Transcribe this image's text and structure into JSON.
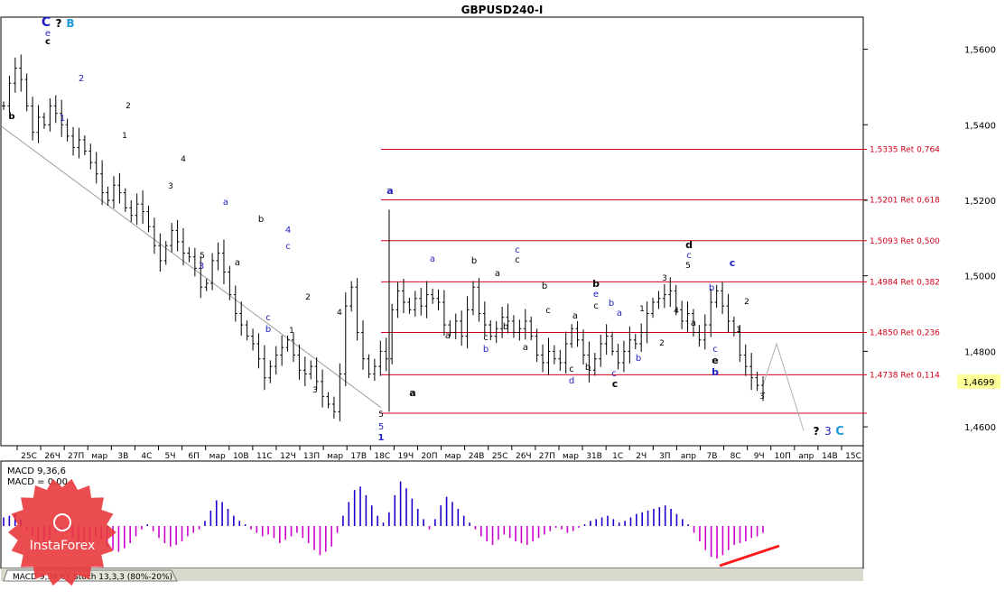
{
  "chart_title": "GBPUSD240-I",
  "macd_label": "MACD 9,36,6",
  "macd_value_label": "MACD = 0,00",
  "tabs": [
    "MACD 9,36,6",
    "Stoch 13,3,3 (80%-20%)"
  ],
  "logo_text": "InstaForex",
  "colors": {
    "fib": "#d0021b",
    "macd_pos": "#1a00cc",
    "macd_neg": "#cc00cc",
    "last_price_bg": "#ffff99",
    "wave_blue": "#1f1fbf",
    "wave_cyan": "#1a9ad6",
    "divergence": "#ff1a1a"
  },
  "chart_data": {
    "type": "ohlc",
    "symbol": "GBPUSD",
    "timeframe": "H4",
    "ylim": [
      1.455,
      1.5685
    ],
    "y_ticks": [
      "1,5600",
      "1,5400",
      "1,5200",
      "1,5000",
      "1,4800",
      "1,4600"
    ],
    "last_price": "1,4699",
    "x_labels": [
      "25C",
      "26Ч",
      "27П",
      "мар",
      "3B",
      "4C",
      "5Ч",
      "6П",
      "мар",
      "10B",
      "11C",
      "12Ч",
      "13П",
      "мар",
      "17B",
      "18C",
      "19Ч",
      "20П",
      "мар",
      "24B",
      "25C",
      "26Ч",
      "27П",
      "мар",
      "31B",
      "1C",
      "2Ч",
      "3П",
      "апр",
      "7B",
      "8C",
      "9Ч",
      "10П",
      "апр",
      "14B",
      "15C"
    ],
    "fib_levels": [
      {
        "price": 1.5335,
        "label": "1,5335 Ret 0,764"
      },
      {
        "price": 1.5201,
        "label": "1,5201 Ret 0,618"
      },
      {
        "price": 1.5093,
        "label": "1,5093 Ret 0,500"
      },
      {
        "price": 1.4984,
        "label": "1,4984 Ret 0,382"
      },
      {
        "price": 1.485,
        "label": "1,4850 Ret 0,236"
      },
      {
        "price": 1.4738,
        "label": "1,4738 Ret 0,114"
      },
      {
        "price": 1.4636,
        "label": ""
      }
    ],
    "path_closes": [
      1.545,
      1.551,
      1.555,
      1.552,
      1.545,
      1.538,
      1.542,
      1.54,
      1.545,
      1.543,
      1.54,
      1.537,
      1.534,
      1.536,
      1.533,
      1.53,
      1.527,
      1.522,
      1.52,
      1.524,
      1.522,
      1.518,
      1.516,
      1.519,
      1.517,
      1.513,
      1.508,
      1.504,
      1.508,
      1.512,
      1.509,
      1.506,
      1.505,
      1.502,
      1.497,
      1.498,
      1.504,
      1.506,
      1.501,
      1.495,
      1.49,
      1.487,
      1.484,
      1.482,
      1.478,
      1.473,
      1.476,
      1.479,
      1.481,
      1.483,
      1.479,
      1.475,
      1.474,
      1.476,
      1.472,
      1.468,
      1.466,
      1.464,
      1.474,
      1.492,
      1.497,
      1.485,
      1.478,
      1.474,
      1.476,
      1.48,
      1.478,
      1.491,
      1.496,
      1.493,
      1.491,
      1.494,
      1.492,
      1.495,
      1.494,
      1.493,
      1.487,
      1.485,
      1.488,
      1.484,
      1.491,
      1.497,
      1.49,
      1.487,
      1.484,
      1.486,
      1.489,
      1.488,
      1.485,
      1.486,
      1.488,
      1.484,
      1.479,
      1.477,
      1.48,
      1.478,
      1.477,
      1.482,
      1.486,
      1.483,
      1.479,
      1.475,
      1.478,
      1.482,
      1.484,
      1.48,
      1.477,
      1.48,
      1.483,
      1.482,
      1.485,
      1.49,
      1.493,
      1.494,
      1.495,
      1.496,
      1.491,
      1.488,
      1.49,
      1.485,
      1.483,
      1.487,
      1.493,
      1.496,
      1.492,
      1.488,
      1.485,
      1.479,
      1.476,
      1.473,
      1.471,
      1.469
    ],
    "macd": [
      0.25,
      0.3,
      0.35,
      0.2,
      -0.1,
      -0.3,
      -0.5,
      -0.6,
      -0.4,
      -0.2,
      -0.1,
      -0.2,
      -0.35,
      -0.5,
      -0.55,
      -0.45,
      -0.3,
      -0.4,
      -0.6,
      -0.7,
      -0.75,
      -0.65,
      -0.5,
      -0.3,
      -0.1,
      0.05,
      -0.15,
      -0.35,
      -0.5,
      -0.6,
      -0.55,
      -0.45,
      -0.3,
      -0.2,
      -0.1,
      0.15,
      0.45,
      0.75,
      0.7,
      0.5,
      0.3,
      0.15,
      0.05,
      -0.1,
      -0.2,
      -0.3,
      -0.25,
      -0.35,
      -0.5,
      -0.4,
      -0.3,
      -0.2,
      -0.35,
      -0.5,
      -0.7,
      -0.85,
      -0.75,
      -0.6,
      -0.2,
      0.3,
      0.7,
      1.05,
      1.15,
      0.9,
      0.6,
      0.3,
      0.1,
      0.4,
      0.9,
      1.3,
      1.1,
      0.8,
      0.5,
      0.2,
      -0.1,
      0.2,
      0.6,
      0.85,
      0.7,
      0.5,
      0.3,
      0.1,
      -0.1,
      -0.3,
      -0.45,
      -0.55,
      -0.4,
      -0.25,
      -0.35,
      -0.45,
      -0.5,
      -0.55,
      -0.45,
      -0.35,
      -0.25,
      -0.15,
      -0.05,
      -0.1,
      -0.2,
      -0.15,
      -0.05,
      0.05,
      0.15,
      0.2,
      0.25,
      0.3,
      0.2,
      0.1,
      0.15,
      0.25,
      0.35,
      0.4,
      0.45,
      0.5,
      0.55,
      0.6,
      0.5,
      0.35,
      0.2,
      0.05,
      -0.2,
      -0.45,
      -0.7,
      -0.9,
      -0.95,
      -0.85,
      -0.7,
      -0.55,
      -0.5,
      -0.45,
      -0.35,
      -0.3,
      -0.2
    ]
  },
  "wave_labels": [
    {
      "t": "C",
      "c": "#1f1fbf",
      "b": true,
      "s": 14,
      "x": 51,
      "y": 29
    },
    {
      "t": "?",
      "c": "#000000",
      "b": true,
      "s": 12,
      "x": 65,
      "y": 30
    },
    {
      "t": "B",
      "c": "#1a9ad6",
      "b": true,
      "s": 12,
      "x": 78,
      "y": 30
    },
    {
      "t": "e",
      "c": "#1f1fbf",
      "b": false,
      "s": 10,
      "x": 53,
      "y": 40
    },
    {
      "t": "c",
      "c": "#000000",
      "b": true,
      "s": 10,
      "x": 53,
      "y": 49
    },
    {
      "t": "b",
      "c": "#000000",
      "b": true,
      "s": 10,
      "x": 13,
      "y": 132
    },
    {
      "t": "2",
      "c": "#1f1fbf",
      "b": false,
      "s": 10,
      "x": 90,
      "y": 90
    },
    {
      "t": "1",
      "c": "#1f1fbf",
      "b": false,
      "s": 10,
      "x": 69,
      "y": 134
    },
    {
      "t": "2",
      "c": "#000000",
      "b": false,
      "s": 9,
      "x": 142,
      "y": 120
    },
    {
      "t": "1",
      "c": "#000000",
      "b": false,
      "s": 9,
      "x": 138,
      "y": 153
    },
    {
      "t": "4",
      "c": "#000000",
      "b": false,
      "s": 9,
      "x": 203,
      "y": 179
    },
    {
      "t": "3",
      "c": "#000000",
      "b": false,
      "s": 9,
      "x": 189,
      "y": 209
    },
    {
      "t": "a",
      "c": "#1f1fbf",
      "b": false,
      "s": 10,
      "x": 250,
      "y": 227
    },
    {
      "t": "b",
      "c": "#000000",
      "b": false,
      "s": 10,
      "x": 289,
      "y": 246
    },
    {
      "t": "4",
      "c": "#1f1fbf",
      "b": false,
      "s": 10,
      "x": 319,
      "y": 258
    },
    {
      "t": "c",
      "c": "#1f1fbf",
      "b": false,
      "s": 10,
      "x": 319,
      "y": 276
    },
    {
      "t": "5",
      "c": "#000000",
      "b": false,
      "s": 9,
      "x": 224,
      "y": 286
    },
    {
      "t": "3",
      "c": "#1f1fbf",
      "b": false,
      "s": 10,
      "x": 223,
      "y": 298
    },
    {
      "t": "a",
      "c": "#000000",
      "b": false,
      "s": 10,
      "x": 263,
      "y": 294
    },
    {
      "t": "2",
      "c": "#000000",
      "b": false,
      "s": 9,
      "x": 341,
      "y": 332
    },
    {
      "t": "c",
      "c": "#1f1fbf",
      "b": false,
      "s": 10,
      "x": 297,
      "y": 355
    },
    {
      "t": "b",
      "c": "#1f1fbf",
      "b": false,
      "s": 10,
      "x": 297,
      "y": 368
    },
    {
      "t": "1",
      "c": "#000000",
      "b": false,
      "s": 9,
      "x": 323,
      "y": 369
    },
    {
      "t": "4",
      "c": "#000000",
      "b": false,
      "s": 9,
      "x": 376,
      "y": 349
    },
    {
      "t": "3",
      "c": "#000000",
      "b": false,
      "s": 9,
      "x": 349,
      "y": 435
    },
    {
      "t": "5",
      "c": "#000000",
      "b": false,
      "s": 9,
      "x": 422,
      "y": 462
    },
    {
      "t": "5",
      "c": "#1f1fbf",
      "b": false,
      "s": 10,
      "x": 422,
      "y": 476
    },
    {
      "t": "1",
      "c": "#1f1fbf",
      "b": true,
      "s": 10,
      "x": 422,
      "y": 488
    },
    {
      "t": "a",
      "c": "#1f1fbf",
      "b": true,
      "s": 11,
      "x": 432,
      "y": 215
    },
    {
      "t": "a",
      "c": "#000000",
      "b": true,
      "s": 11,
      "x": 457,
      "y": 439
    },
    {
      "t": "a",
      "c": "#1f1fbf",
      "b": false,
      "s": 10,
      "x": 479,
      "y": 290
    },
    {
      "t": "b",
      "c": "#000000",
      "b": false,
      "s": 10,
      "x": 525,
      "y": 292
    },
    {
      "t": "a",
      "c": "#000000",
      "b": false,
      "s": 10,
      "x": 551,
      "y": 306
    },
    {
      "t": "c",
      "c": "#1f1fbf",
      "b": false,
      "s": 10,
      "x": 573,
      "y": 280
    },
    {
      "t": "c",
      "c": "#000000",
      "b": false,
      "s": 10,
      "x": 573,
      "y": 291
    },
    {
      "t": "a",
      "c": "#000000",
      "b": false,
      "s": 10,
      "x": 496,
      "y": 375
    },
    {
      "t": "c",
      "c": "#000000",
      "b": false,
      "s": 10,
      "x": 538,
      "y": 377
    },
    {
      "t": "b",
      "c": "#1f1fbf",
      "b": false,
      "s": 10,
      "x": 538,
      "y": 390
    },
    {
      "t": "b",
      "c": "#000000",
      "b": false,
      "s": 10,
      "x": 560,
      "y": 365
    },
    {
      "t": "a",
      "c": "#000000",
      "b": false,
      "s": 10,
      "x": 582,
      "y": 388
    },
    {
      "t": "b",
      "c": "#000000",
      "b": false,
      "s": 10,
      "x": 603,
      "y": 320
    },
    {
      "t": "c",
      "c": "#000000",
      "b": false,
      "s": 10,
      "x": 607,
      "y": 347
    },
    {
      "t": "a",
      "c": "#000000",
      "b": false,
      "s": 10,
      "x": 637,
      "y": 353
    },
    {
      "t": "b",
      "c": "#000000",
      "b": true,
      "s": 11,
      "x": 660,
      "y": 318
    },
    {
      "t": "e",
      "c": "#1f1fbf",
      "b": false,
      "s": 10,
      "x": 660,
      "y": 329
    },
    {
      "t": "c",
      "c": "#000000",
      "b": false,
      "s": 10,
      "x": 660,
      "y": 342
    },
    {
      "t": "b",
      "c": "#1f1fbf",
      "b": false,
      "s": 10,
      "x": 677,
      "y": 339
    },
    {
      "t": "a",
      "c": "#1f1fbf",
      "b": false,
      "s": 10,
      "x": 686,
      "y": 350
    },
    {
      "t": "c",
      "c": "#000000",
      "b": false,
      "s": 10,
      "x": 633,
      "y": 412
    },
    {
      "t": "d",
      "c": "#1f1fbf",
      "b": false,
      "s": 10,
      "x": 633,
      "y": 425
    },
    {
      "t": "b",
      "c": "#000000",
      "b": false,
      "s": 10,
      "x": 651,
      "y": 410
    },
    {
      "t": "c",
      "c": "#1f1fbf",
      "b": false,
      "s": 10,
      "x": 680,
      "y": 417
    },
    {
      "t": "c",
      "c": "#000000",
      "b": true,
      "s": 11,
      "x": 681,
      "y": 429
    },
    {
      "t": "b",
      "c": "#1f1fbf",
      "b": false,
      "s": 10,
      "x": 707,
      "y": 400
    },
    {
      "t": "1",
      "c": "#000000",
      "b": false,
      "s": 9,
      "x": 711,
      "y": 345
    },
    {
      "t": "2",
      "c": "#000000",
      "b": false,
      "s": 9,
      "x": 733,
      "y": 383
    },
    {
      "t": "3",
      "c": "#000000",
      "b": false,
      "s": 9,
      "x": 736,
      "y": 311
    },
    {
      "t": "4",
      "c": "#000000",
      "b": false,
      "s": 9,
      "x": 749,
      "y": 347
    },
    {
      "t": "d",
      "c": "#000000",
      "b": true,
      "s": 11,
      "x": 763,
      "y": 275
    },
    {
      "t": "c",
      "c": "#1f1fbf",
      "b": false,
      "s": 10,
      "x": 763,
      "y": 286
    },
    {
      "t": "5",
      "c": "#000000",
      "b": false,
      "s": 9,
      "x": 762,
      "y": 297
    },
    {
      "t": "a",
      "c": "#000000",
      "b": false,
      "s": 10,
      "x": 768,
      "y": 361
    },
    {
      "t": "b",
      "c": "#1f1fbf",
      "b": false,
      "s": 10,
      "x": 788,
      "y": 322
    },
    {
      "t": "c",
      "c": "#1f1fbf",
      "b": true,
      "s": 11,
      "x": 811,
      "y": 295
    },
    {
      "t": "c",
      "c": "#1f1fbf",
      "b": false,
      "s": 10,
      "x": 792,
      "y": 390
    },
    {
      "t": "e",
      "c": "#000000",
      "b": true,
      "s": 11,
      "x": 792,
      "y": 403
    },
    {
      "t": "b",
      "c": "#1f1fbf",
      "b": true,
      "s": 11,
      "x": 792,
      "y": 416
    },
    {
      "t": "2",
      "c": "#000000",
      "b": false,
      "s": 9,
      "x": 827,
      "y": 337
    },
    {
      "t": "1",
      "c": "#000000",
      "b": false,
      "s": 9,
      "x": 818,
      "y": 368
    },
    {
      "t": "3",
      "c": "#000000",
      "b": false,
      "s": 9,
      "x": 844,
      "y": 442
    },
    {
      "t": "?",
      "c": "#000000",
      "b": true,
      "s": 12,
      "x": 904,
      "y": 482
    },
    {
      "t": "3",
      "c": "#1f1fbf",
      "b": false,
      "s": 12,
      "x": 917,
      "y": 482
    },
    {
      "t": "C",
      "c": "#1a9ad6",
      "b": true,
      "s": 13,
      "x": 930,
      "y": 482
    }
  ]
}
